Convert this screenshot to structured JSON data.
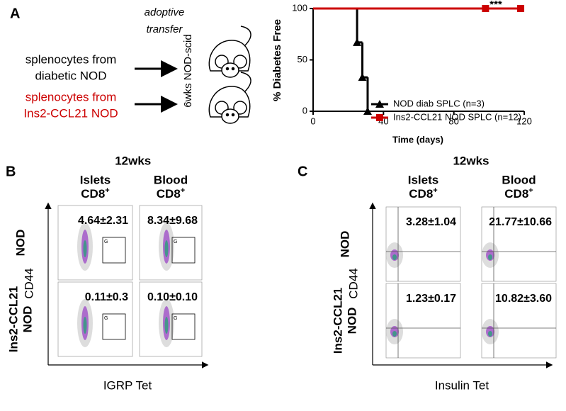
{
  "panel_a": {
    "label": "A",
    "annotation": [
      "adoptive",
      "transfer"
    ],
    "recipient": "6wks NOD-scid",
    "donors": [
      [
        "splenocytes from",
        "diabetic NOD"
      ],
      [
        "splenocytes from",
        "Ins2-CCL21 NOD"
      ]
    ]
  },
  "chart_data": {
    "type": "line",
    "ylabel": "% Diabetes Free",
    "xlabel": "Time (days)",
    "annotation": "***",
    "xlim": [
      0,
      120
    ],
    "xticks": [
      0,
      40,
      80,
      120
    ],
    "ylim": [
      0,
      100
    ],
    "yticks": [
      0,
      50,
      100
    ],
    "step": true,
    "series": [
      {
        "name": "NOD diab SPLC (n=3)",
        "color": "#000000",
        "marker": "triangle",
        "x": [
          0,
          25,
          28,
          31
        ],
        "values": [
          100,
          67,
          33,
          0
        ]
      },
      {
        "name": "Ins2-CCL21 NOD SPLC (n=12)",
        "color": "#cc0000",
        "marker": "square",
        "x": [
          0,
          98,
          118
        ],
        "values": [
          100,
          100,
          100
        ]
      }
    ]
  },
  "panel_b": {
    "label": "B",
    "timepoint": "12wks",
    "columns": [
      [
        "Islets",
        "CD8",
        "+"
      ],
      [
        "Blood",
        "CD8",
        "+"
      ]
    ],
    "rows": [
      [
        "NOD"
      ],
      [
        "Ins2-CCL21",
        "NOD"
      ]
    ],
    "y_axis": "CD44",
    "x_axis": "IGRP Tet",
    "gate_label": "G",
    "values": [
      [
        "4.64±2.31",
        "8.34±9.68"
      ],
      [
        "0.11±0.3",
        "0.10±0.10"
      ]
    ]
  },
  "panel_c": {
    "label": "C",
    "timepoint": "12wks",
    "columns": [
      [
        "Islets",
        "CD8",
        "+"
      ],
      [
        "Blood",
        "CD8",
        "+"
      ]
    ],
    "rows": [
      [
        "NOD"
      ],
      [
        "Ins2-CCL21",
        "NOD"
      ]
    ],
    "y_axis": "CD44",
    "x_axis": "Insulin Tet",
    "values": [
      [
        "3.28±1.04",
        "21.77±10.66"
      ],
      [
        "1.23±0.17",
        "10.82±3.60"
      ]
    ]
  }
}
